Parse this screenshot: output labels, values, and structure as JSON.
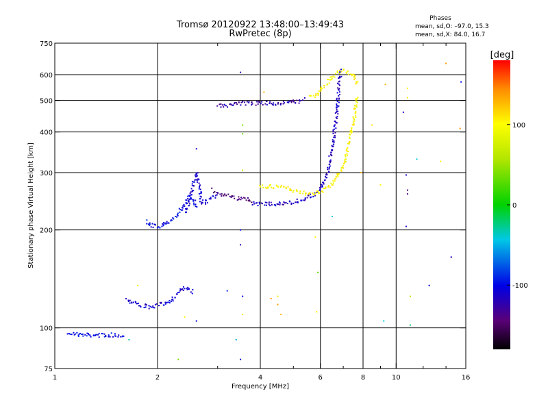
{
  "chart_data": {
    "type": "scatter",
    "title": "Tromsø 20120922 13:48:00–13:49:43",
    "subtitle": "RwPretec (8p)",
    "phases_header": "Phases",
    "phases_line1": "mean, sd,O: –97.0, 15.3",
    "phases_line2": "mean, sd,X:  84.0, 16.7",
    "xlabel": "Frequency [MHz]",
    "ylabel": "Stationary phase Virtual Height [km]",
    "x_scale": "log",
    "y_scale": "log",
    "xlim": [
      1,
      16
    ],
    "ylim": [
      75,
      750
    ],
    "x_major_ticks": [
      1,
      2,
      4,
      6,
      8,
      10,
      16
    ],
    "x_major_labels": [
      "1",
      "2",
      "4",
      "6",
      "8",
      "10",
      "16"
    ],
    "x_minor_ticks": [
      3,
      5,
      7,
      9,
      12,
      14
    ],
    "y_major_ticks": [
      75,
      100,
      200,
      300,
      400,
      500,
      600,
      750
    ],
    "y_major_labels": [
      "75",
      "100",
      "200",
      "300",
      "400",
      "500",
      "600",
      "750"
    ],
    "grid": true,
    "colorbar": {
      "label": "[deg]",
      "range": [
        -180,
        180
      ],
      "ticks": [
        100,
        0,
        -100
      ],
      "tick_labels": [
        "100",
        "0",
        "-100"
      ]
    },
    "series": [
      {
        "phase": -100,
        "segments": [
          [
            1.1,
            97
          ],
          [
            1.12,
            96
          ],
          [
            1.2,
            95
          ],
          [
            1.3,
            95
          ],
          [
            1.4,
            95
          ],
          [
            1.5,
            95
          ],
          [
            1.6,
            95
          ]
        ]
      },
      {
        "phase": -110,
        "segments": [
          [
            1.62,
            122
          ],
          [
            1.7,
            120
          ],
          [
            1.8,
            117
          ],
          [
            1.9,
            116
          ],
          [
            2.0,
            117
          ],
          [
            2.1,
            119
          ],
          [
            2.2,
            122
          ],
          [
            2.3,
            128
          ],
          [
            2.4,
            133
          ],
          [
            2.5,
            130
          ],
          [
            2.55,
            128
          ]
        ]
      },
      {
        "phase": -100,
        "segments": [
          [
            1.85,
            212
          ],
          [
            1.9,
            207
          ],
          [
            2.0,
            205
          ],
          [
            2.1,
            208
          ],
          [
            2.2,
            215
          ],
          [
            2.3,
            225
          ],
          [
            2.4,
            240
          ],
          [
            2.5,
            255
          ],
          [
            2.55,
            245
          ],
          [
            2.6,
            235
          ]
        ]
      },
      {
        "phase": -110,
        "segments": [
          [
            2.4,
            225
          ],
          [
            2.5,
            250
          ],
          [
            2.55,
            280
          ],
          [
            2.6,
            300
          ],
          [
            2.65,
            270
          ],
          [
            2.7,
            240
          ],
          [
            2.8,
            245
          ],
          [
            3.0,
            255
          ]
        ]
      },
      {
        "phase": -140,
        "segments": [
          [
            2.9,
            265
          ],
          [
            3.0,
            260
          ],
          [
            3.2,
            255
          ],
          [
            3.4,
            250
          ],
          [
            3.6,
            248
          ],
          [
            3.8,
            246
          ]
        ]
      },
      {
        "phase": -115,
        "segments": [
          [
            3.8,
            242
          ],
          [
            4.0,
            240
          ],
          [
            4.4,
            240
          ],
          [
            4.8,
            242
          ],
          [
            5.2,
            246
          ],
          [
            5.6,
            253
          ],
          [
            5.9,
            262
          ],
          [
            6.1,
            275
          ],
          [
            6.3,
            300
          ],
          [
            6.5,
            360
          ],
          [
            6.7,
            450
          ],
          [
            6.8,
            560
          ],
          [
            6.9,
            620
          ]
        ]
      },
      {
        "phase": 100,
        "segments": [
          [
            4.0,
            272
          ],
          [
            4.4,
            272
          ],
          [
            4.8,
            268
          ],
          [
            5.2,
            262
          ],
          [
            5.6,
            258
          ],
          [
            6.0,
            262
          ],
          [
            6.4,
            275
          ],
          [
            6.8,
            295
          ],
          [
            7.1,
            330
          ],
          [
            7.3,
            380
          ],
          [
            7.5,
            430
          ],
          [
            7.6,
            470
          ],
          [
            7.7,
            520
          ]
        ]
      },
      {
        "phase": -125,
        "segments": [
          [
            3.0,
            480
          ],
          [
            3.3,
            485
          ],
          [
            3.6,
            490
          ],
          [
            4.0,
            490
          ],
          [
            4.4,
            490
          ],
          [
            4.8,
            492
          ],
          [
            5.1,
            495
          ],
          [
            5.4,
            505
          ]
        ]
      },
      {
        "phase": 100,
        "segments": [
          [
            5.6,
            510
          ],
          [
            5.9,
            520
          ],
          [
            6.1,
            545
          ],
          [
            6.6,
            600
          ],
          [
            7.0,
            620
          ],
          [
            7.5,
            600
          ],
          [
            7.7,
            560
          ]
        ]
      }
    ],
    "scatter_points": [
      {
        "x": 3.5,
        "y": 610,
        "phase": -120
      },
      {
        "x": 3.55,
        "y": 420,
        "phase": 40
      },
      {
        "x": 3.55,
        "y": 395,
        "phase": 30
      },
      {
        "x": 3.55,
        "y": 305,
        "phase": 60
      },
      {
        "x": 3.5,
        "y": 200,
        "phase": -100
      },
      {
        "x": 3.5,
        "y": 180,
        "phase": -120
      },
      {
        "x": 3.55,
        "y": 125,
        "phase": -100
      },
      {
        "x": 3.55,
        "y": 110,
        "phase": 90
      },
      {
        "x": 3.5,
        "y": 80,
        "phase": -110
      },
      {
        "x": 3.4,
        "y": 92,
        "phase": -50
      },
      {
        "x": 3.2,
        "y": 130,
        "phase": -90
      },
      {
        "x": 2.6,
        "y": 355,
        "phase": -110
      },
      {
        "x": 2.6,
        "y": 105,
        "phase": -105
      },
      {
        "x": 2.3,
        "y": 80,
        "phase": 40
      },
      {
        "x": 2.4,
        "y": 108,
        "phase": 100
      },
      {
        "x": 1.75,
        "y": 135,
        "phase": 90
      },
      {
        "x": 1.65,
        "y": 92,
        "phase": -30
      },
      {
        "x": 4.1,
        "y": 530,
        "phase": 130
      },
      {
        "x": 4.3,
        "y": 123,
        "phase": 140
      },
      {
        "x": 4.5,
        "y": 118,
        "phase": 140
      },
      {
        "x": 4.5,
        "y": 125,
        "phase": 110
      },
      {
        "x": 4.6,
        "y": 110,
        "phase": 130
      },
      {
        "x": 5.8,
        "y": 190,
        "phase": 100
      },
      {
        "x": 5.9,
        "y": 148,
        "phase": 30
      },
      {
        "x": 5.85,
        "y": 112,
        "phase": 100
      },
      {
        "x": 6.5,
        "y": 220,
        "phase": -40
      },
      {
        "x": 7.9,
        "y": 300,
        "phase": 130
      },
      {
        "x": 8.5,
        "y": 420,
        "phase": 110
      },
      {
        "x": 9.0,
        "y": 275,
        "phase": 100
      },
      {
        "x": 9.3,
        "y": 560,
        "phase": 130
      },
      {
        "x": 9.2,
        "y": 105,
        "phase": -40
      },
      {
        "x": 10.5,
        "y": 460,
        "phase": -110
      },
      {
        "x": 10.8,
        "y": 545,
        "phase": 100
      },
      {
        "x": 10.8,
        "y": 510,
        "phase": 110
      },
      {
        "x": 10.7,
        "y": 295,
        "phase": -110
      },
      {
        "x": 10.8,
        "y": 265,
        "phase": -140
      },
      {
        "x": 10.8,
        "y": 258,
        "phase": -140
      },
      {
        "x": 10.7,
        "y": 205,
        "phase": -120
      },
      {
        "x": 11.0,
        "y": 125,
        "phase": 60
      },
      {
        "x": 11.0,
        "y": 102,
        "phase": -20
      },
      {
        "x": 11.5,
        "y": 330,
        "phase": -40
      },
      {
        "x": 12.5,
        "y": 135,
        "phase": -100
      },
      {
        "x": 13.5,
        "y": 325,
        "phase": 100
      },
      {
        "x": 14.0,
        "y": 650,
        "phase": 140
      },
      {
        "x": 14.5,
        "y": 165,
        "phase": -110
      },
      {
        "x": 15.5,
        "y": 570,
        "phase": -100
      },
      {
        "x": 15.4,
        "y": 410,
        "phase": 140
      }
    ]
  }
}
